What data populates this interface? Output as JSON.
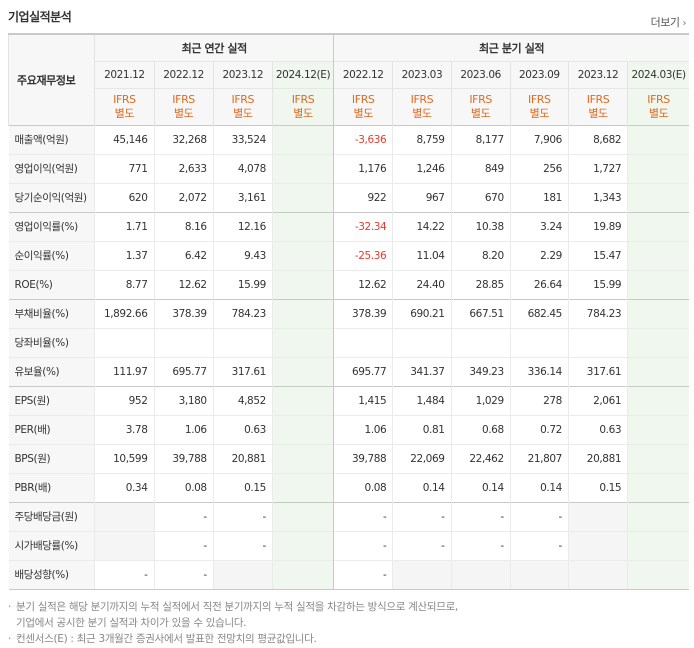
{
  "section_title": "기업실적분석",
  "more_label": "더보기",
  "header": {
    "label": "주요재무정보",
    "group_annual": "최근 연간 실적",
    "group_quarter": "최근 분기 실적",
    "periods": [
      "2021.12",
      "2022.12",
      "2023.12",
      "2024.12(E)",
      "2022.12",
      "2023.03",
      "2023.06",
      "2023.09",
      "2023.12",
      "2024.03(E)"
    ],
    "basis_line1": "IFRS",
    "basis_line2": "별도"
  },
  "rows": [
    {
      "label": "매출액(억원)",
      "values": [
        "45,146",
        "32,268",
        "33,524",
        "",
        "-3,636",
        "8,759",
        "8,177",
        "7,906",
        "8,682",
        ""
      ]
    },
    {
      "label": "영업이익(억원)",
      "values": [
        "771",
        "2,633",
        "4,078",
        "",
        "1,176",
        "1,246",
        "849",
        "256",
        "1,727",
        ""
      ]
    },
    {
      "label": "당기순이익(억원)",
      "values": [
        "620",
        "2,072",
        "3,161",
        "",
        "922",
        "967",
        "670",
        "181",
        "1,343",
        ""
      ]
    },
    {
      "label": "영업이익률(%)",
      "values": [
        "1.71",
        "8.16",
        "12.16",
        "",
        "-32.34",
        "14.22",
        "10.38",
        "3.24",
        "19.89",
        ""
      ]
    },
    {
      "label": "순이익률(%)",
      "values": [
        "1.37",
        "6.42",
        "9.43",
        "",
        "-25.36",
        "11.04",
        "8.20",
        "2.29",
        "15.47",
        ""
      ]
    },
    {
      "label": "ROE(%)",
      "values": [
        "8.77",
        "12.62",
        "15.99",
        "",
        "12.62",
        "24.40",
        "28.85",
        "26.64",
        "15.99",
        ""
      ]
    },
    {
      "label": "부채비율(%)",
      "values": [
        "1,892.66",
        "378.39",
        "784.23",
        "",
        "378.39",
        "690.21",
        "667.51",
        "682.45",
        "784.23",
        ""
      ]
    },
    {
      "label": "당좌비율(%)",
      "values": [
        "",
        "",
        "",
        "",
        "",
        "",
        "",
        "",
        "",
        ""
      ]
    },
    {
      "label": "유보율(%)",
      "values": [
        "111.97",
        "695.77",
        "317.61",
        "",
        "695.77",
        "341.37",
        "349.23",
        "336.14",
        "317.61",
        ""
      ]
    },
    {
      "label": "EPS(원)",
      "values": [
        "952",
        "3,180",
        "4,852",
        "",
        "1,415",
        "1,484",
        "1,029",
        "278",
        "2,061",
        ""
      ]
    },
    {
      "label": "PER(배)",
      "values": [
        "3.78",
        "1.06",
        "0.63",
        "",
        "1.06",
        "0.81",
        "0.68",
        "0.72",
        "0.63",
        ""
      ]
    },
    {
      "label": "BPS(원)",
      "values": [
        "10,599",
        "39,788",
        "20,881",
        "",
        "39,788",
        "22,069",
        "22,462",
        "21,807",
        "20,881",
        ""
      ]
    },
    {
      "label": "PBR(배)",
      "values": [
        "0.34",
        "0.08",
        "0.15",
        "",
        "0.08",
        "0.14",
        "0.14",
        "0.14",
        "0.15",
        ""
      ]
    },
    {
      "label": "주당배당금(원)",
      "values": [
        "",
        "-",
        "-",
        "",
        "-",
        "-",
        "-",
        "-",
        "",
        ""
      ]
    },
    {
      "label": "시가배당률(%)",
      "values": [
        "",
        "-",
        "-",
        "",
        "-",
        "-",
        "-",
        "-",
        "",
        ""
      ]
    },
    {
      "label": "배당성향(%)",
      "values": [
        "-",
        "-",
        "",
        "",
        "-",
        "",
        "",
        "",
        "",
        ""
      ]
    }
  ],
  "notes": [
    "분기 실적은 해당 분기까지의 누적 실적에서 직전 분기까지의 누적 실적을 차감하는 방식으로 계산되므로,",
    "기업에서 공시한 분기 실적과 차이가 있을 수 있습니다.",
    "컨센서스(E) : 최근 3개월간 증권사에서 발표한 전망치의 평균값입니다."
  ]
}
